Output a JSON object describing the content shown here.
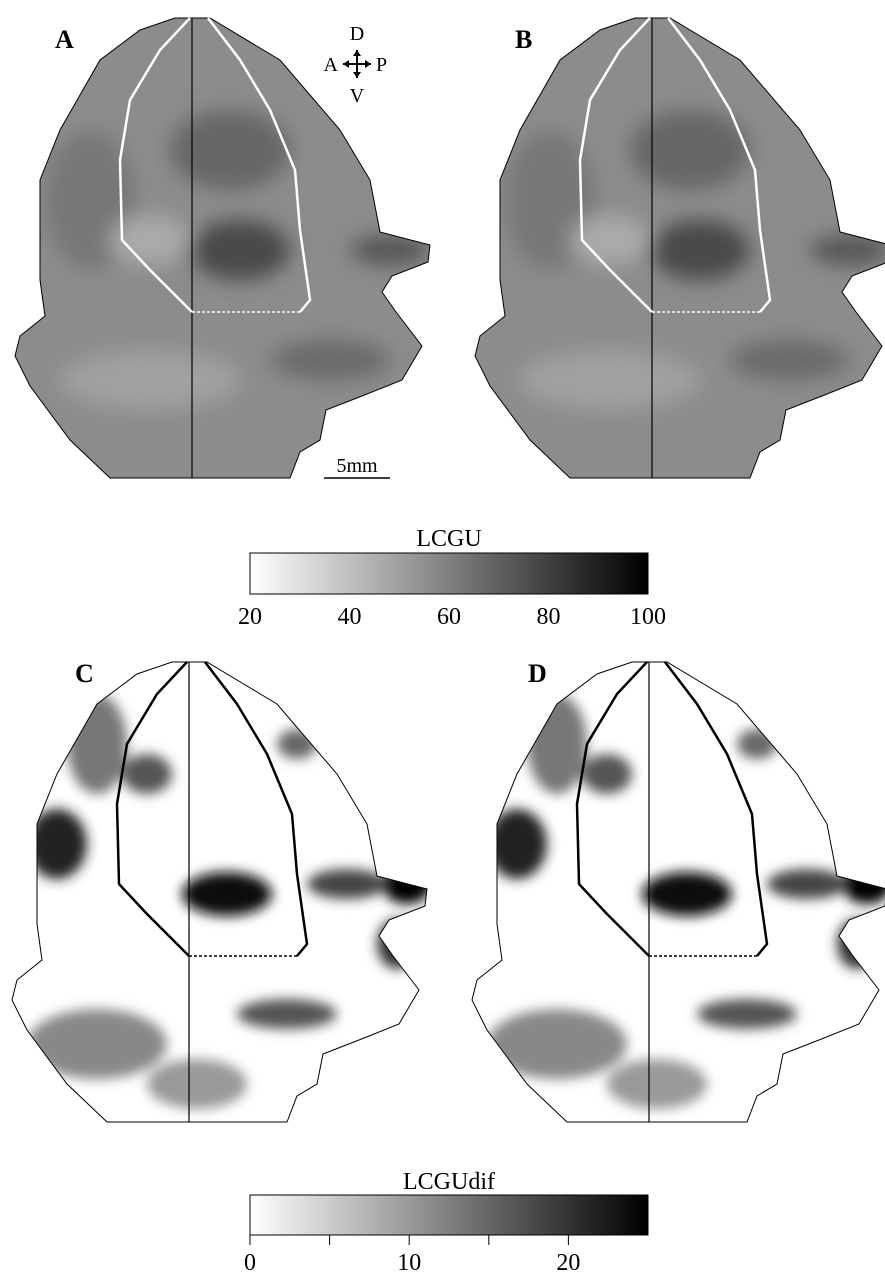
{
  "panels": [
    {
      "label": "A"
    },
    {
      "label": "B"
    },
    {
      "label": "C"
    },
    {
      "label": "D"
    }
  ],
  "orientation": {
    "dorsal": "D",
    "anterior": "A",
    "posterior": "P",
    "ventral": "V"
  },
  "scale_bar": "5mm",
  "colorbars": [
    {
      "title": "LCGU",
      "lim": [
        20,
        100
      ],
      "ticks": [
        20,
        40,
        60,
        80,
        100
      ]
    },
    {
      "title": "LCGUdif",
      "lim": [
        0,
        25
      ],
      "ticks": [
        0,
        10,
        20
      ],
      "minor_ticks": [
        5,
        15
      ]
    }
  ]
}
